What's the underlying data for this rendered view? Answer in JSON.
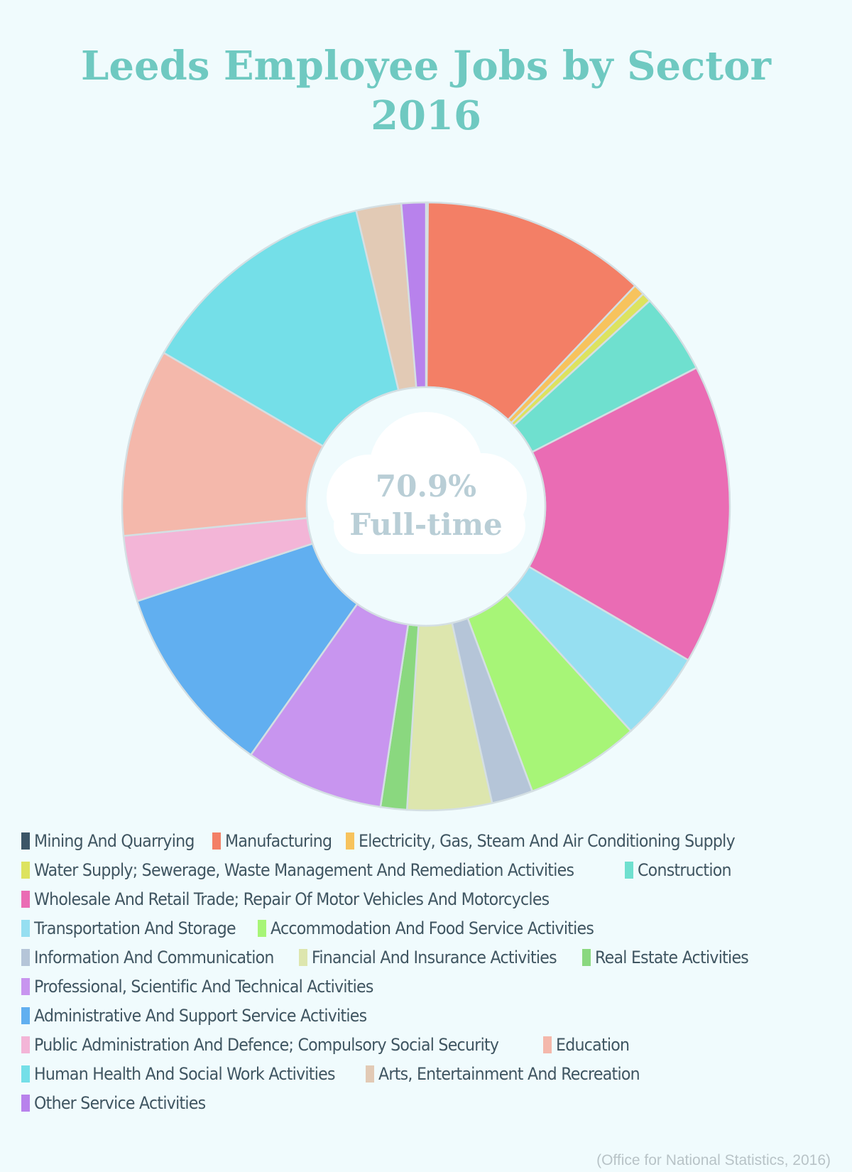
{
  "title_line1": "Leeds Employee Jobs by Sector",
  "title_line2": "2016",
  "center": {
    "value": "70.9%",
    "label": "Full-time"
  },
  "source": "(Office for National Statistics, 2016)",
  "chart_data": {
    "type": "pie",
    "title": "Leeds Employee Jobs by Sector 2016",
    "donut": true,
    "start_angle_deg": 0,
    "slices": [
      {
        "name": "Mining And Quarrying",
        "value": 0.1,
        "color": "#3d5567"
      },
      {
        "name": "Manufacturing",
        "value": 12.0,
        "color": "#f37f66"
      },
      {
        "name": "Electricity, Gas, Steam And Air Conditioning Supply",
        "value": 0.6,
        "color": "#f7c35d"
      },
      {
        "name": "Water Supply; Sewerage, Waste Management And Remediation Activities",
        "value": 0.5,
        "color": "#dde35f"
      },
      {
        "name": "Construction",
        "value": 4.3,
        "color": "#6fe0cf"
      },
      {
        "name": "Wholesale And Retail Trade; Repair Of Motor Vehicles And Motorcycles",
        "value": 16.0,
        "color": "#ea6cb4"
      },
      {
        "name": "Transportation And Storage",
        "value": 4.8,
        "color": "#96dff1"
      },
      {
        "name": "Accommodation And Food Service Activities",
        "value": 6.1,
        "color": "#a7f577"
      },
      {
        "name": "Information And Communication",
        "value": 2.2,
        "color": "#b5c5d8"
      },
      {
        "name": "Financial And Insurance Activities",
        "value": 4.5,
        "color": "#dde6ae"
      },
      {
        "name": "Real Estate Activities",
        "value": 1.4,
        "color": "#8ad87f"
      },
      {
        "name": "Professional, Scientific And Technical Activities",
        "value": 7.4,
        "color": "#c895ef"
      },
      {
        "name": "Administrative And Support Service Activities",
        "value": 10.2,
        "color": "#61aff0"
      },
      {
        "name": "Public Administration And Defence; Compulsory Social Security",
        "value": 3.5,
        "color": "#f3b5d7"
      },
      {
        "name": "Education",
        "value": 10.0,
        "color": "#f4b8ab"
      },
      {
        "name": "Human Health And Social Work Activities",
        "value": 12.9,
        "color": "#74dfe8"
      },
      {
        "name": "Arts, Entertainment And Recreation",
        "value": 2.4,
        "color": "#e2cab5"
      },
      {
        "name": "Other Service Activities",
        "value": 1.3,
        "color": "#b882ec"
      }
    ]
  },
  "legend_rows": [
    [
      0,
      1,
      2
    ],
    [
      3,
      4
    ],
    [
      5
    ],
    [
      6,
      7
    ],
    [
      8,
      9,
      10
    ],
    [
      11
    ],
    [
      12
    ],
    [
      13,
      14
    ],
    [
      15,
      16
    ],
    [
      17
    ]
  ]
}
